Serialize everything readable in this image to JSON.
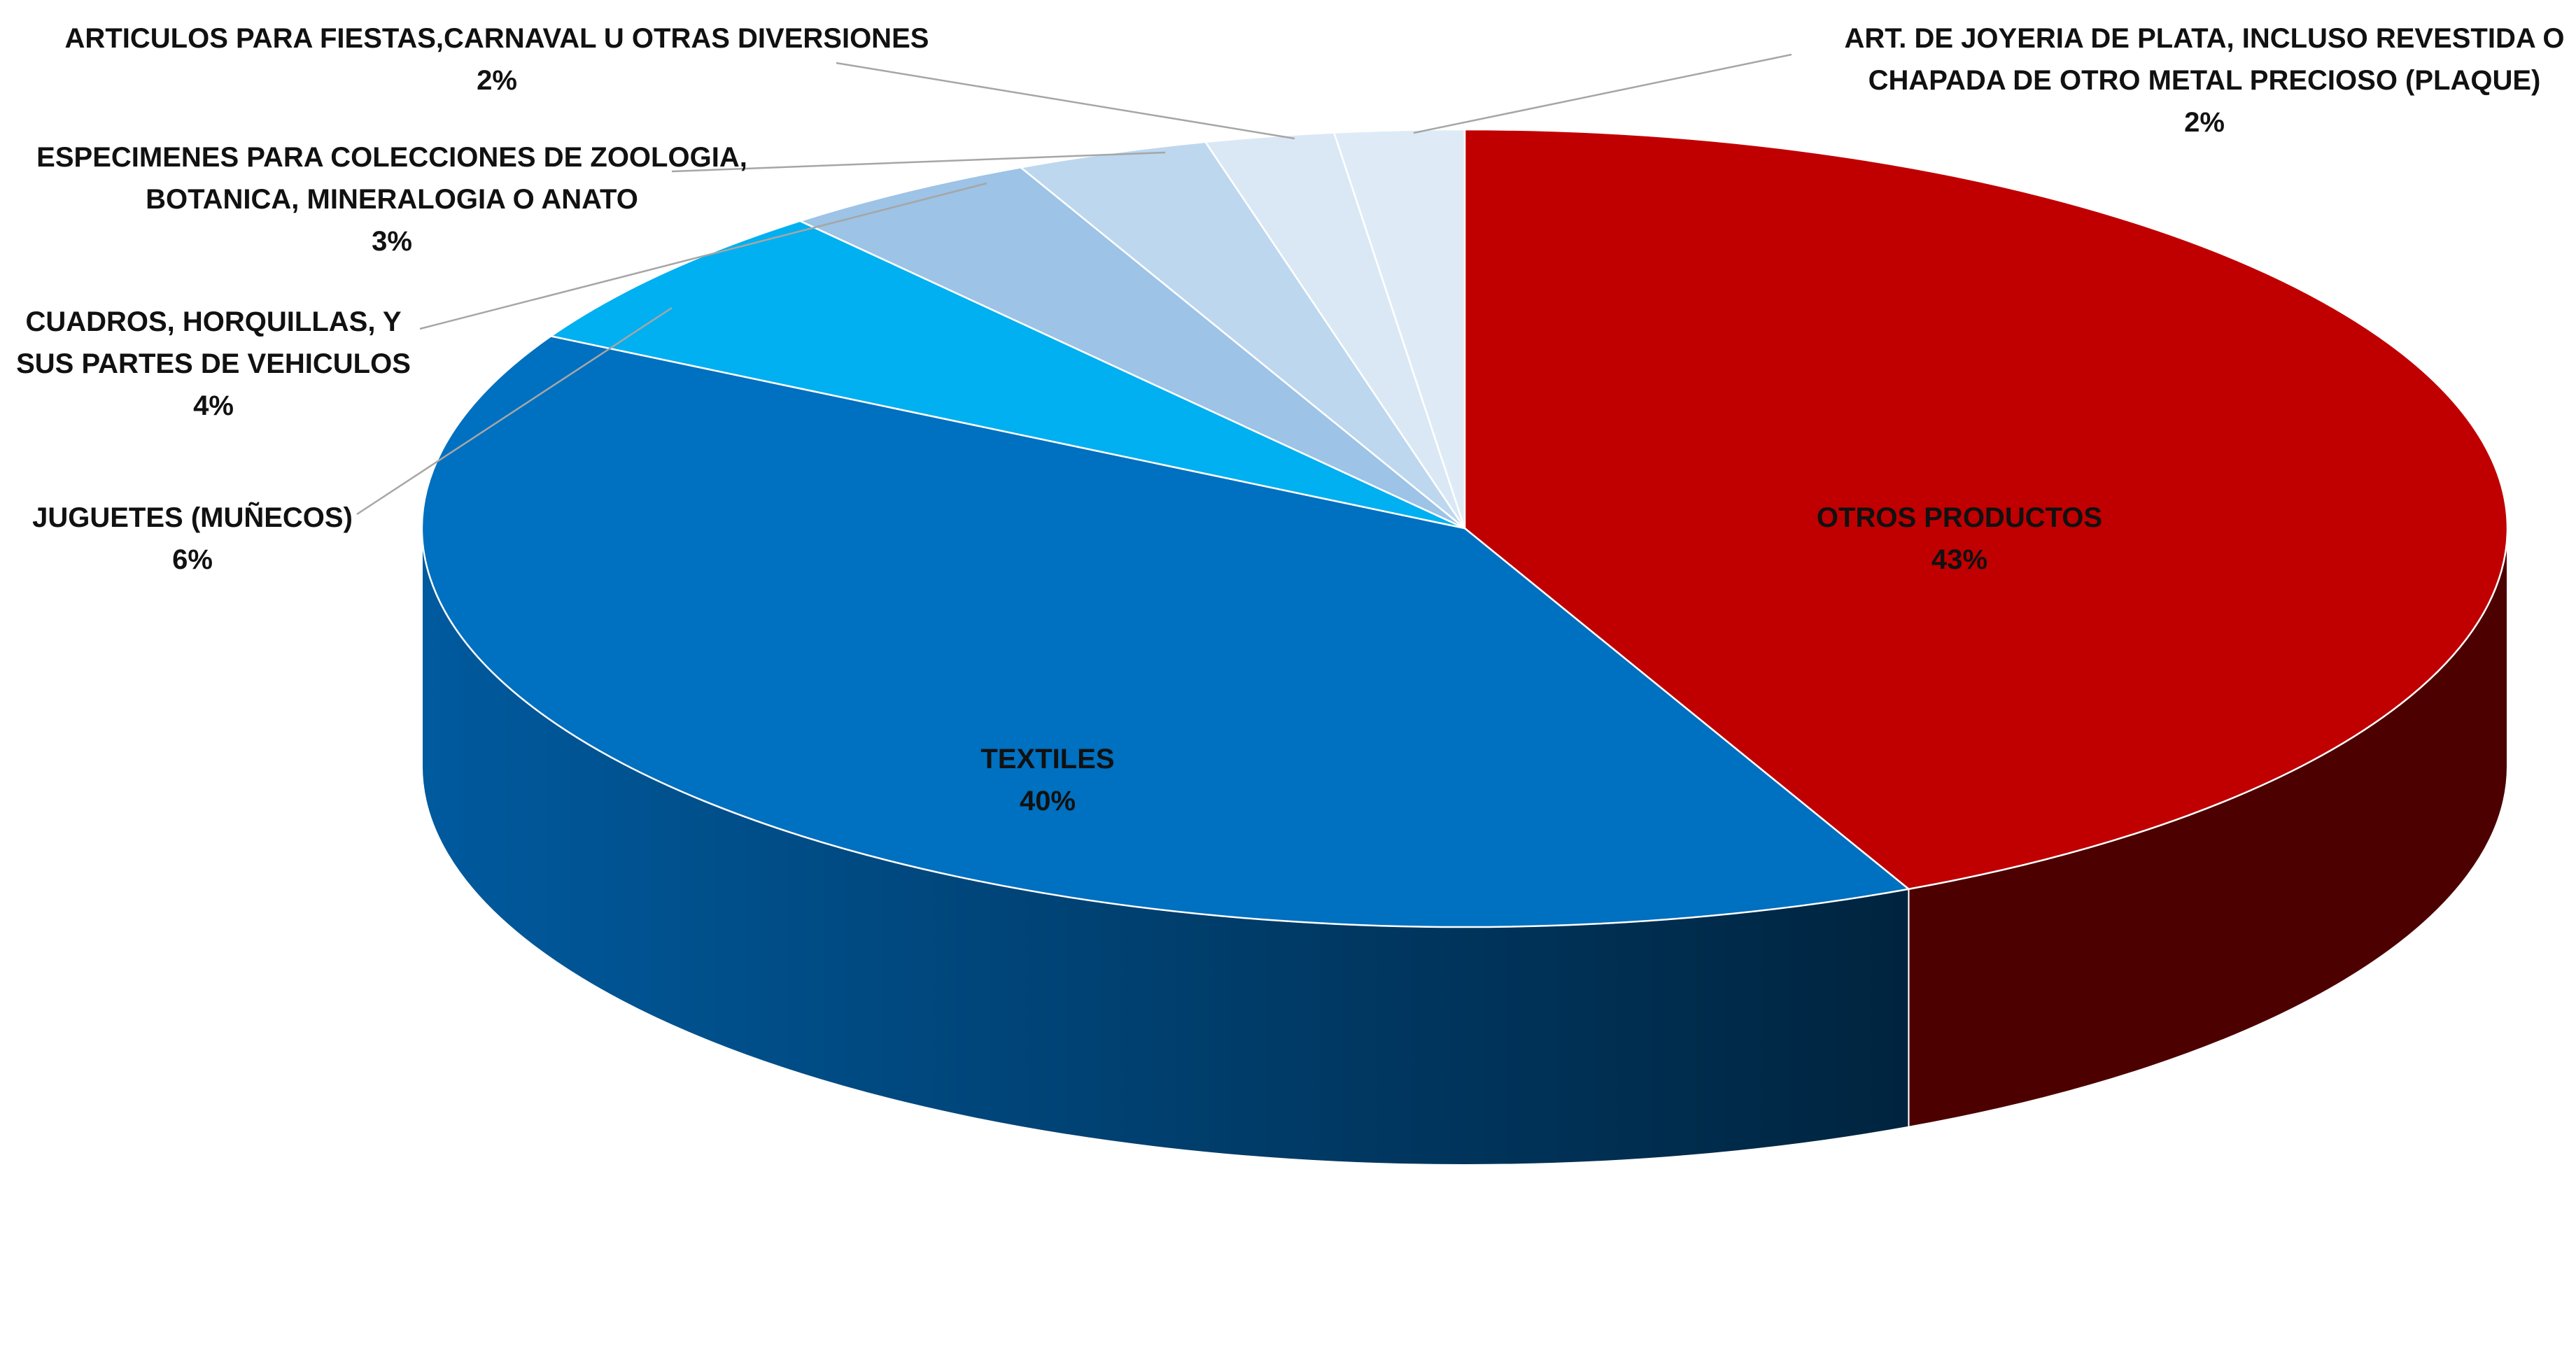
{
  "chart_data": {
    "type": "pie",
    "style": "3d",
    "title": "",
    "slices": [
      {
        "name": "OTROS PRODUCTOS",
        "value": 43,
        "label": "43%",
        "color": "#C00000",
        "side_color": "#4D0000"
      },
      {
        "name": "TEXTILES",
        "value": 40,
        "label": "40%",
        "color": "#0070C0",
        "side_color": "#003A66"
      },
      {
        "name": "JUGUETES (MUÑECOS)",
        "value": 6,
        "label": "6%",
        "color": "#00B0F0",
        "side_color": "#0079A6"
      },
      {
        "name": "CUADROS, HORQUILLAS, Y SUS PARTES DE VEHICULOS",
        "value": 4,
        "label": "4%",
        "color": "#9DC3E6",
        "side_color": "#6F8FAD"
      },
      {
        "name": "ESPECIMENES PARA COLECCIONES DE ZOOLOGIA, BOTANICA, MINERALOGIA O ANATO",
        "value": 3,
        "label": "3%",
        "color": "#BDD7EE",
        "side_color": "#8FA5B8"
      },
      {
        "name": "ARTICULOS PARA FIESTAS,CARNAVAL U OTRAS DIVERSIONES",
        "value": 2,
        "label": "2%",
        "color": "#DAE8F5",
        "side_color": "#A9B6C2"
      },
      {
        "name": "ART. DE JOYERIA DE PLATA, INCLUSO REVESTIDA O CHAPADA DE OTRO METAL PRECIOSO (PLAQUE)",
        "value": 2,
        "label": "2%",
        "color": "#DEEBF7",
        "side_color": "#AEBAC5"
      }
    ],
    "label_lines": [
      [
        "OTROS PRODUCTOS",
        "43%"
      ],
      [
        "TEXTILES",
        "40%"
      ],
      [
        "JUGUETES (MUÑECOS)",
        "6%"
      ],
      [
        "CUADROS, HORQUILLAS, Y",
        "SUS PARTES DE VEHICULOS",
        "4%"
      ],
      [
        "ESPECIMENES PARA COLECCIONES DE ZOOLOGIA,",
        "BOTANICA, MINERALOGIA O ANATO",
        "3%"
      ],
      [
        "ARTICULOS PARA FIESTAS,CARNAVAL U OTRAS DIVERSIONES",
        "2%"
      ],
      [
        "ART. DE JOYERIA DE PLATA, INCLUSO REVESTIDA O",
        "CHAPADA DE OTRO METAL PRECIOSO (PLAQUE)",
        "2%"
      ]
    ],
    "legend": "none"
  }
}
